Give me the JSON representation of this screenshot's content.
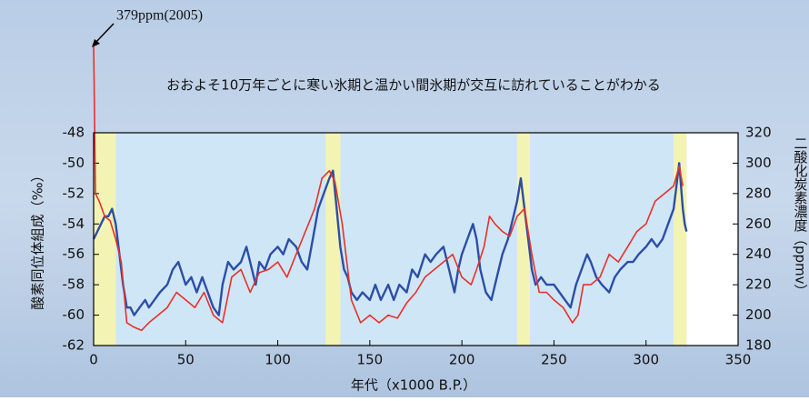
{
  "chart_data": {
    "type": "line",
    "annotation": "379ppm(2005)",
    "subtitle": "おおよそ10万年ごとに寒い氷期と温かい間氷期が交互に訪れていることがわかる",
    "xlabel": "年代（x1000 B.P.）",
    "ylabel": "酸素同位体組成（‰）",
    "y2label": "二酸化炭素濃度（ppmv）",
    "xlim": [
      0,
      350
    ],
    "xticks": [
      0,
      50,
      100,
      150,
      200,
      250,
      300,
      350
    ],
    "ylim": [
      -62,
      -48
    ],
    "yticks": [
      -48,
      -50,
      -52,
      -54,
      -56,
      -58,
      -60,
      -62
    ],
    "y2lim": [
      180,
      320
    ],
    "y2ticks": [
      320,
      300,
      280,
      260,
      240,
      220,
      200,
      180
    ],
    "shaded_periods": [
      [
        0,
        12
      ],
      [
        126,
        134
      ],
      [
        230,
        237
      ],
      [
        315,
        322
      ]
    ],
    "shade_color": "#f3f3b4",
    "background_color": "#cfe6f6",
    "series": [
      {
        "color": "#2c4ea6",
        "x": [
          0,
          2,
          4,
          6,
          8,
          10,
          12,
          14,
          16,
          18,
          20,
          22,
          25,
          28,
          30,
          33,
          36,
          40,
          43,
          46,
          50,
          53,
          56,
          59,
          62,
          65,
          68,
          70,
          73,
          76,
          80,
          83,
          86,
          88,
          90,
          93,
          96,
          100,
          103,
          106,
          110,
          113,
          116,
          119,
          122,
          125,
          128,
          130,
          132,
          134,
          136,
          138,
          140,
          143,
          146,
          150,
          153,
          156,
          160,
          163,
          166,
          170,
          173,
          176,
          180,
          183,
          186,
          190,
          193,
          196,
          198,
          200,
          203,
          206,
          208,
          210,
          213,
          216,
          219,
          222,
          225,
          228,
          230,
          232,
          234,
          236,
          238,
          240,
          243,
          246,
          250,
          253,
          256,
          259,
          262,
          265,
          268,
          270,
          273,
          276,
          280,
          283,
          286,
          290,
          293,
          296,
          300,
          303,
          306,
          309,
          312,
          315,
          317,
          318,
          319,
          320,
          321,
          322
        ],
        "values": [
          -55,
          -54.5,
          -54,
          -53.5,
          -53.5,
          -53,
          -54,
          -56,
          -58,
          -59.5,
          -59.5,
          -60,
          -59.5,
          -59,
          -59.5,
          -59,
          -58.5,
          -58,
          -57,
          -56.5,
          -58,
          -57.5,
          -58.5,
          -57.5,
          -58.5,
          -59.5,
          -60,
          -58,
          -56.5,
          -57,
          -56.5,
          -55.5,
          -57,
          -58,
          -56.5,
          -57,
          -56,
          -55.5,
          -56,
          -55,
          -55.5,
          -56.5,
          -57,
          -55,
          -53,
          -52,
          -51,
          -50.5,
          -53,
          -55.5,
          -57,
          -57.5,
          -58.5,
          -59,
          -58.5,
          -59,
          -58,
          -59,
          -58,
          -59,
          -58,
          -58.5,
          -57,
          -57.5,
          -56,
          -56.5,
          -56,
          -55.5,
          -57,
          -58.5,
          -57,
          -56,
          -55,
          -54,
          -55,
          -57,
          -58.5,
          -59,
          -57.5,
          -56,
          -55,
          -53.5,
          -52.5,
          -51,
          -53,
          -55,
          -57,
          -58,
          -57.5,
          -58,
          -58,
          -58.5,
          -59,
          -59.5,
          -58,
          -57,
          -56,
          -56.5,
          -57.5,
          -58,
          -58.5,
          -57.5,
          -57,
          -56.5,
          -56.5,
          -56,
          -55.5,
          -55,
          -55.5,
          -55,
          -54,
          -53,
          -51,
          -50,
          -51.5,
          -53,
          -54,
          -54.5
        ]
      },
      {
        "color": "#e8302c",
        "axis": "y2",
        "x": [
          0,
          1,
          3,
          6,
          9,
          12,
          15,
          18,
          22,
          26,
          30,
          35,
          40,
          45,
          50,
          55,
          60,
          65,
          70,
          75,
          80,
          85,
          90,
          95,
          100,
          105,
          110,
          115,
          120,
          124,
          128,
          131,
          135,
          140,
          145,
          150,
          155,
          160,
          165,
          170,
          175,
          180,
          185,
          190,
          195,
          200,
          205,
          208,
          212,
          215,
          218,
          222,
          226,
          230,
          234,
          238,
          242,
          246,
          250,
          255,
          260,
          263,
          266,
          270,
          275,
          280,
          285,
          290,
          295,
          300,
          305,
          310,
          315,
          318,
          320
        ],
        "values": [
          379,
          280,
          275,
          265,
          262,
          250,
          235,
          195,
          192,
          190,
          195,
          200,
          205,
          215,
          210,
          205,
          215,
          200,
          195,
          225,
          230,
          215,
          228,
          230,
          235,
          225,
          240,
          255,
          270,
          290,
          295,
          288,
          260,
          210,
          195,
          200,
          195,
          200,
          198,
          208,
          215,
          225,
          230,
          235,
          240,
          225,
          220,
          230,
          245,
          265,
          260,
          255,
          252,
          265,
          270,
          240,
          215,
          215,
          210,
          205,
          195,
          200,
          220,
          220,
          225,
          240,
          235,
          245,
          255,
          260,
          275,
          280,
          285,
          298,
          285
        ]
      }
    ]
  }
}
